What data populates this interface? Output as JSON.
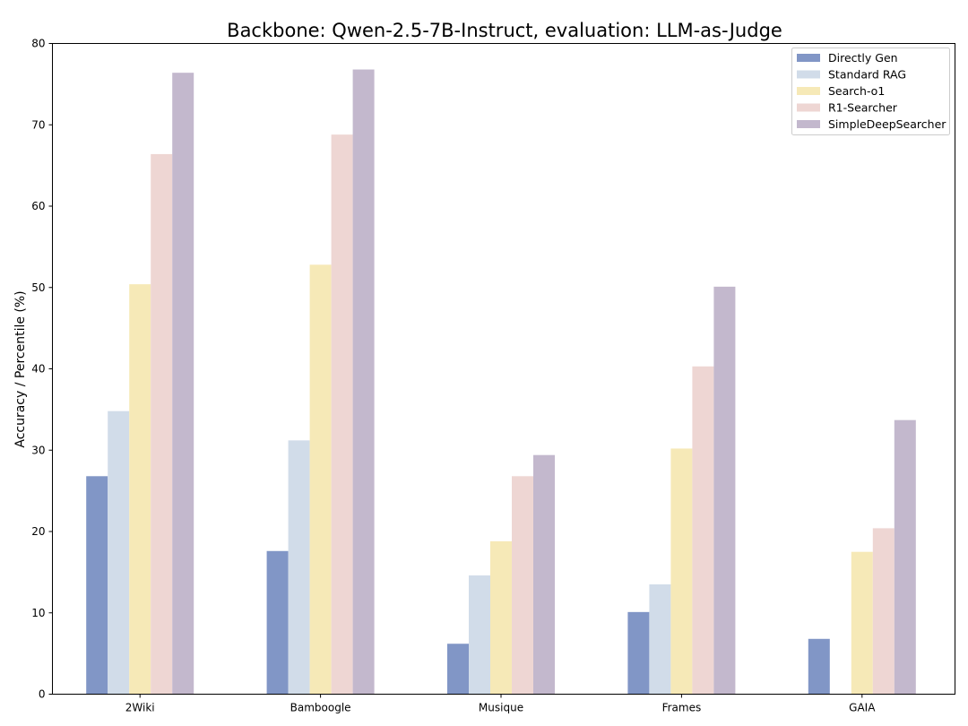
{
  "chart_data": {
    "type": "bar",
    "title": "Backbone: Qwen-2.5-7B-Instruct, evaluation: LLM-as-Judge",
    "xlabel": "",
    "ylabel": "Accuracy / Percentile (%)",
    "ylim": [
      0,
      80
    ],
    "yticks": [
      "0",
      "10",
      "20",
      "30",
      "40",
      "50",
      "60",
      "70",
      "80"
    ],
    "grid": false,
    "legend_position": "top-right",
    "categories": [
      "2Wiki",
      "Bamboogle",
      "Musique",
      "Frames",
      "GAIA"
    ],
    "series": [
      {
        "name": "Directly Gen",
        "color": "#8196c6",
        "values": [
          26.8,
          17.6,
          6.2,
          10.1,
          6.8
        ]
      },
      {
        "name": "Standard RAG",
        "color": "#d1dce9",
        "values": [
          34.8,
          31.2,
          14.6,
          13.5,
          0
        ]
      },
      {
        "name": "Search-o1",
        "color": "#f6e9b7",
        "values": [
          50.4,
          52.8,
          18.8,
          30.2,
          17.5
        ]
      },
      {
        "name": "R1-Searcher",
        "color": "#eed6d3",
        "values": [
          66.4,
          68.8,
          26.8,
          40.3,
          20.4
        ]
      },
      {
        "name": "SimpleDeepSearcher",
        "color": "#c3b8cd",
        "values": [
          76.4,
          76.8,
          29.4,
          50.1,
          33.7
        ]
      }
    ]
  }
}
